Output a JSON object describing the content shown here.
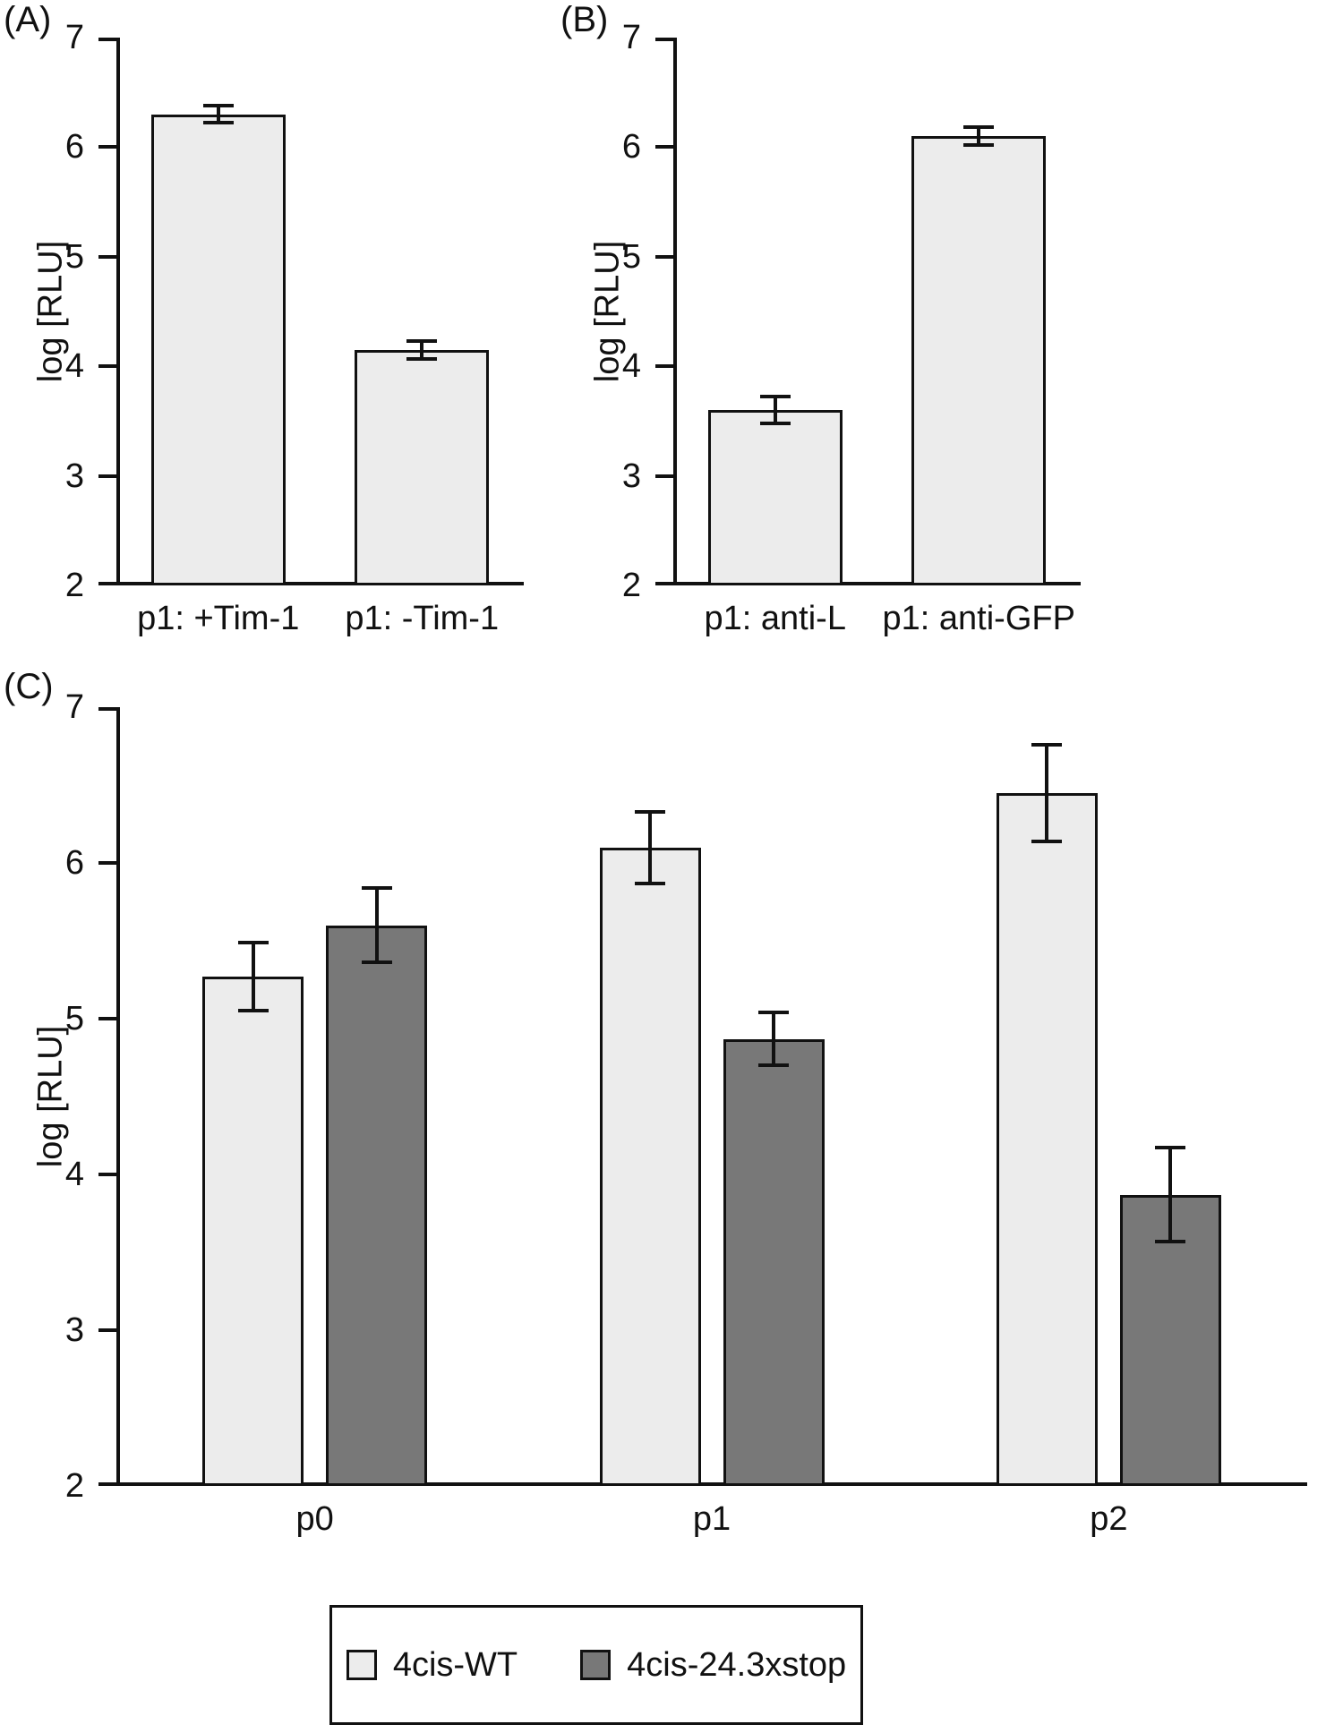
{
  "chart_data": [
    {
      "type": "bar",
      "panel": "(A)",
      "title": "",
      "categories": [
        "p1: +Tim-1",
        "p1: -Tim-1"
      ],
      "values": [
        6.3,
        4.15
      ],
      "errors": [
        0.08,
        0.08
      ],
      "bar_color": "#ececec",
      "xlabel": "",
      "ylabel": "log [RLU]",
      "ylim": [
        2,
        7
      ],
      "yticks": [
        2,
        3,
        4,
        5,
        6,
        7
      ],
      "grid": false,
      "legend_position": "none"
    },
    {
      "type": "bar",
      "panel": "(B)",
      "title": "",
      "categories": [
        "p1: anti-L",
        "p1: anti-GFP"
      ],
      "values": [
        3.6,
        6.1
      ],
      "errors": [
        0.12,
        0.08
      ],
      "bar_color": "#ececec",
      "xlabel": "",
      "ylabel": "log [RLU]",
      "ylim": [
        2,
        7
      ],
      "yticks": [
        2,
        3,
        4,
        5,
        6,
        7
      ],
      "grid": false,
      "legend_position": "none"
    },
    {
      "type": "bar",
      "panel": "(C)",
      "title": "",
      "categories": [
        "p0",
        "p1",
        "p2"
      ],
      "series": [
        {
          "name": "4cis-WT",
          "values": [
            5.27,
            6.1,
            6.45
          ],
          "errors": [
            0.22,
            0.23,
            0.31
          ],
          "color": "#ececec"
        },
        {
          "name": "4cis-24.3xstop",
          "values": [
            5.6,
            4.87,
            3.87
          ],
          "errors": [
            0.24,
            0.17,
            0.3
          ],
          "color": "#787878"
        }
      ],
      "xlabel": "",
      "ylabel": "log [RLU]",
      "ylim": [
        2,
        7
      ],
      "yticks": [
        2,
        3,
        4,
        5,
        6,
        7
      ],
      "grid": false,
      "legend": [
        "4cis-WT",
        "4cis-24.3xstop"
      ],
      "legend_position": "bottom"
    }
  ],
  "colors": {
    "axis": "#111111",
    "light_bar": "#ececec",
    "dark_bar": "#787878",
    "background": "#ffffff"
  }
}
